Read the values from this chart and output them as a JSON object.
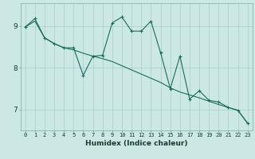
{
  "title": "",
  "xlabel": "Humidex (Indice chaleur)",
  "bg_color": "#cce8e4",
  "line_color": "#1a6b5e",
  "grid_color": "#aacfca",
  "xlim": [
    -0.5,
    23.5
  ],
  "ylim": [
    6.5,
    9.55
  ],
  "xticks": [
    0,
    1,
    2,
    3,
    4,
    5,
    6,
    7,
    8,
    9,
    10,
    11,
    12,
    13,
    14,
    15,
    16,
    17,
    18,
    19,
    20,
    21,
    22,
    23
  ],
  "yticks": [
    7,
    8,
    9
  ],
  "data_x": [
    0,
    1,
    2,
    3,
    4,
    5,
    6,
    7,
    8,
    9,
    10,
    11,
    12,
    13,
    14,
    15,
    16,
    17,
    18,
    19,
    20,
    21,
    22,
    23
  ],
  "data_y": [
    8.98,
    9.18,
    8.72,
    8.58,
    8.48,
    8.48,
    7.82,
    8.28,
    8.3,
    9.08,
    9.22,
    8.88,
    8.88,
    9.12,
    8.36,
    7.5,
    8.28,
    7.25,
    7.45,
    7.22,
    7.18,
    7.05,
    6.98,
    6.67
  ],
  "trend_x": [
    0,
    1,
    2,
    3,
    4,
    5,
    6,
    7,
    8,
    9,
    10,
    11,
    12,
    13,
    14,
    15,
    16,
    17,
    18,
    19,
    20,
    21,
    22,
    23
  ],
  "trend_y": [
    8.98,
    9.12,
    8.72,
    8.58,
    8.48,
    8.43,
    8.35,
    8.28,
    8.22,
    8.15,
    8.05,
    7.95,
    7.85,
    7.75,
    7.65,
    7.52,
    7.42,
    7.35,
    7.28,
    7.2,
    7.12,
    7.05,
    6.98,
    6.67
  ],
  "xlabel_fontsize": 6.5,
  "xtick_fontsize": 5.0,
  "ytick_fontsize": 6.5
}
